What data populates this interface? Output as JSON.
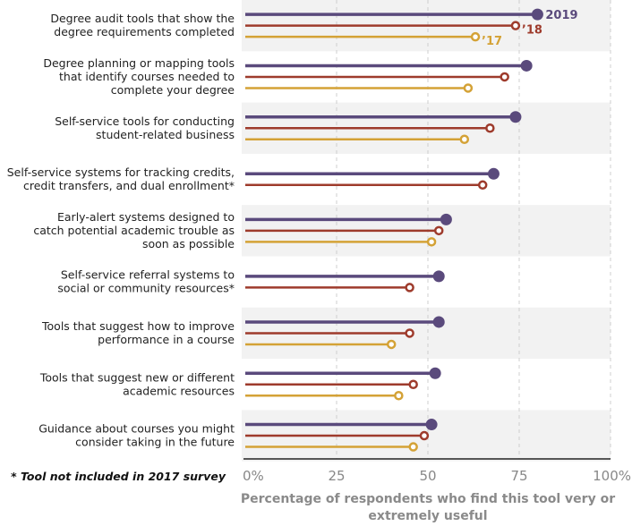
{
  "chart_data": {
    "type": "lollipop-bar",
    "categories": [
      [
        "Degree audit tools that show the",
        "degree requirements completed"
      ],
      [
        "Degree planning or mapping tools",
        "that identify courses needed to",
        "complete your degree"
      ],
      [
        "Self-service tools for conducting",
        "student-related business"
      ],
      [
        "Self-service systems for tracking credits,",
        "credit transfers, and dual enrollment*"
      ],
      [
        "Early-alert systems designed to",
        "catch potential academic trouble as",
        "soon as possible"
      ],
      [
        "Self-service referral systems to",
        "social or community resources*"
      ],
      [
        "Tools that suggest how to improve",
        "performance in a course"
      ],
      [
        "Tools that suggest new or different",
        "academic resources"
      ],
      [
        "Guidance about courses you might",
        "consider taking in the future"
      ]
    ],
    "series": [
      {
        "name": "2019",
        "label": "2019",
        "color": "#5a4a7c",
        "marker": "filled",
        "values": [
          80,
          77,
          74,
          68,
          55,
          53,
          53,
          52,
          51
        ]
      },
      {
        "name": "2018",
        "label": "’18",
        "color": "#9e3b2c",
        "marker": "open",
        "values": [
          74,
          71,
          67,
          65,
          53,
          45,
          45,
          46,
          49
        ]
      },
      {
        "name": "2017",
        "label": "’17",
        "color": "#d4a236",
        "marker": "open",
        "values": [
          63,
          61,
          60,
          null,
          51,
          null,
          40,
          42,
          46
        ]
      }
    ],
    "xlim": [
      0,
      100
    ],
    "xticks": [
      "0%",
      "25",
      "50",
      "75",
      "100%"
    ],
    "xlabel": [
      "Percentage of respondents who find this tool very or",
      "extremely useful"
    ],
    "footnote": "* Tool not included in 2017 survey",
    "grid": "vertical dashed",
    "band_color": "#f2f2f2"
  }
}
